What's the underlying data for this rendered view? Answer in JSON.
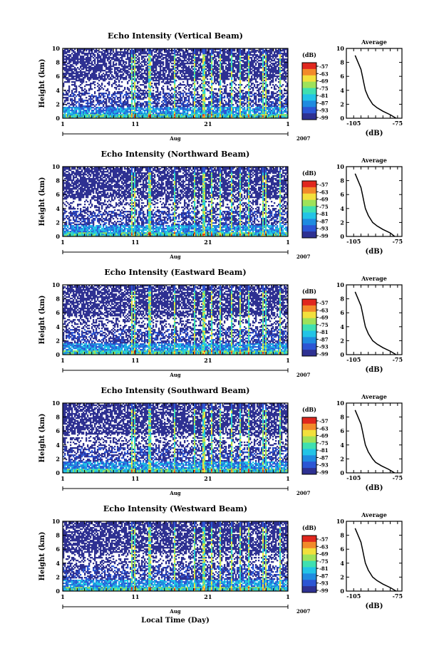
{
  "chart_data": [
    {
      "type": "heatmap",
      "title": "Echo Intensity (Vertical Beam)",
      "ylabel": "Height (km)",
      "ylim": [
        0,
        10
      ],
      "yticks": [
        "0",
        "2",
        "4",
        "6",
        "8",
        "10"
      ],
      "x_ticks": [
        "1",
        "11",
        "21",
        "1"
      ],
      "x_month": "Aug",
      "x_year": "2007",
      "colorbar": {
        "title": "(dB)",
        "labels": [
          "-57",
          "-63",
          "-69",
          "-75",
          "-81",
          "-87",
          "-93",
          "-99"
        ]
      },
      "profile": {
        "title": "Average",
        "xlabel": "(dB)",
        "x_ticks": [
          "-105",
          "-75"
        ],
        "y_ticks": [
          "0",
          "2",
          "4",
          "6",
          "8",
          "10"
        ],
        "height": [
          0,
          0.5,
          1,
          1.5,
          2,
          3,
          4,
          5,
          6,
          7,
          8,
          9
        ],
        "db": [
          -76,
          -80,
          -85,
          -89,
          -92,
          -95,
          -97,
          -98,
          -99,
          -100,
          -102,
          -104
        ]
      }
    },
    {
      "type": "heatmap",
      "title": "Echo Intensity (Northward Beam)",
      "ylabel": "Height (km)",
      "ylim": [
        0,
        10
      ],
      "yticks": [
        "0",
        "2",
        "4",
        "6",
        "8",
        "10"
      ],
      "x_ticks": [
        "1",
        "11",
        "21",
        "1"
      ],
      "x_month": "Aug",
      "x_year": "2007",
      "colorbar": {
        "title": "(dB)",
        "labels": [
          "-57",
          "-63",
          "-69",
          "-75",
          "-81",
          "-87",
          "-93",
          "-99"
        ]
      },
      "profile": {
        "title": "Average",
        "xlabel": "(dB)",
        "x_ticks": [
          "-105",
          "-75"
        ],
        "y_ticks": [
          "0",
          "2",
          "4",
          "6",
          "8",
          "10"
        ],
        "height": [
          0,
          0.5,
          1,
          1.5,
          2,
          3,
          4,
          5,
          6,
          7,
          8,
          9
        ],
        "db": [
          -77,
          -80,
          -85,
          -89,
          -92,
          -95,
          -97,
          -98,
          -99,
          -100,
          -102,
          -104
        ]
      }
    },
    {
      "type": "heatmap",
      "title": "Echo Intensity (Eastward Beam)",
      "ylabel": "Height (km)",
      "ylim": [
        0,
        10
      ],
      "yticks": [
        "0",
        "2",
        "4",
        "6",
        "8",
        "10"
      ],
      "x_ticks": [
        "1",
        "11",
        "21",
        "1"
      ],
      "x_month": "Aug",
      "x_year": "2007",
      "colorbar": {
        "title": "(dB)",
        "labels": [
          "-57",
          "-63",
          "-69",
          "-75",
          "-81",
          "-87",
          "-93",
          "-99"
        ]
      },
      "profile": {
        "title": "Average",
        "xlabel": "(dB)",
        "x_ticks": [
          "-105",
          "-75"
        ],
        "y_ticks": [
          "0",
          "2",
          "4",
          "6",
          "8",
          "10"
        ],
        "height": [
          0,
          0.5,
          1,
          1.5,
          2,
          3,
          4,
          5,
          6,
          7,
          8,
          9
        ],
        "db": [
          -76,
          -80,
          -85,
          -89,
          -92,
          -95,
          -97,
          -98,
          -99,
          -100,
          -102,
          -104
        ]
      }
    },
    {
      "type": "heatmap",
      "title": "Echo Intensity (Southward Beam)",
      "ylabel": "Height (km)",
      "ylim": [
        0,
        10
      ],
      "yticks": [
        "0",
        "2",
        "4",
        "6",
        "8",
        "10"
      ],
      "x_ticks": [
        "1",
        "11",
        "21",
        "1"
      ],
      "x_month": "Aug",
      "x_year": "2007",
      "colorbar": {
        "title": "(dB)",
        "labels": [
          "-57",
          "-63",
          "-69",
          "-75",
          "-81",
          "-87",
          "-93",
          "-99"
        ]
      },
      "profile": {
        "title": "Average",
        "xlabel": "(dB)",
        "x_ticks": [
          "-105",
          "-75"
        ],
        "y_ticks": [
          "0",
          "2",
          "4",
          "6",
          "8",
          "10"
        ],
        "height": [
          0,
          0.5,
          1,
          1.5,
          2,
          3,
          4,
          5,
          6,
          7,
          8,
          9
        ],
        "db": [
          -77,
          -81,
          -86,
          -90,
          -92,
          -95,
          -97,
          -98,
          -99,
          -100,
          -102,
          -104
        ]
      }
    },
    {
      "type": "heatmap",
      "title": "Echo Intensity (Westward Beam)",
      "ylabel": "Height (km)",
      "ylim": [
        0,
        10
      ],
      "yticks": [
        "0",
        "2",
        "4",
        "6",
        "8",
        "10"
      ],
      "x_ticks": [
        "1",
        "11",
        "21",
        "1"
      ],
      "x_month": "Aug",
      "x_year": "2007",
      "xlabel": "Local Time (Day)",
      "colorbar": {
        "title": "(dB)",
        "labels": [
          "-57",
          "-63",
          "-69",
          "-75",
          "-81",
          "-87",
          "-93",
          "-99"
        ]
      },
      "profile": {
        "title": "Average",
        "xlabel": "(dB)",
        "x_ticks": [
          "-105",
          "-75"
        ],
        "y_ticks": [
          "0",
          "2",
          "4",
          "6",
          "8",
          "10"
        ],
        "height": [
          0,
          0.5,
          1,
          1.5,
          2,
          3,
          4,
          5,
          6,
          7,
          8,
          9
        ],
        "db": [
          -76,
          -80,
          -85,
          -89,
          -92,
          -95,
          -97,
          -98,
          -99,
          -100,
          -102,
          -104
        ]
      }
    }
  ],
  "colors": {
    "scale": [
      "#2e3192",
      "#2c56d4",
      "#1f8be0",
      "#22c4e6",
      "#3fe0b0",
      "#9ee25a",
      "#f2e03c",
      "#f28a2a",
      "#e0271e"
    ],
    "axis": "#000000",
    "background": "#ffffff"
  }
}
